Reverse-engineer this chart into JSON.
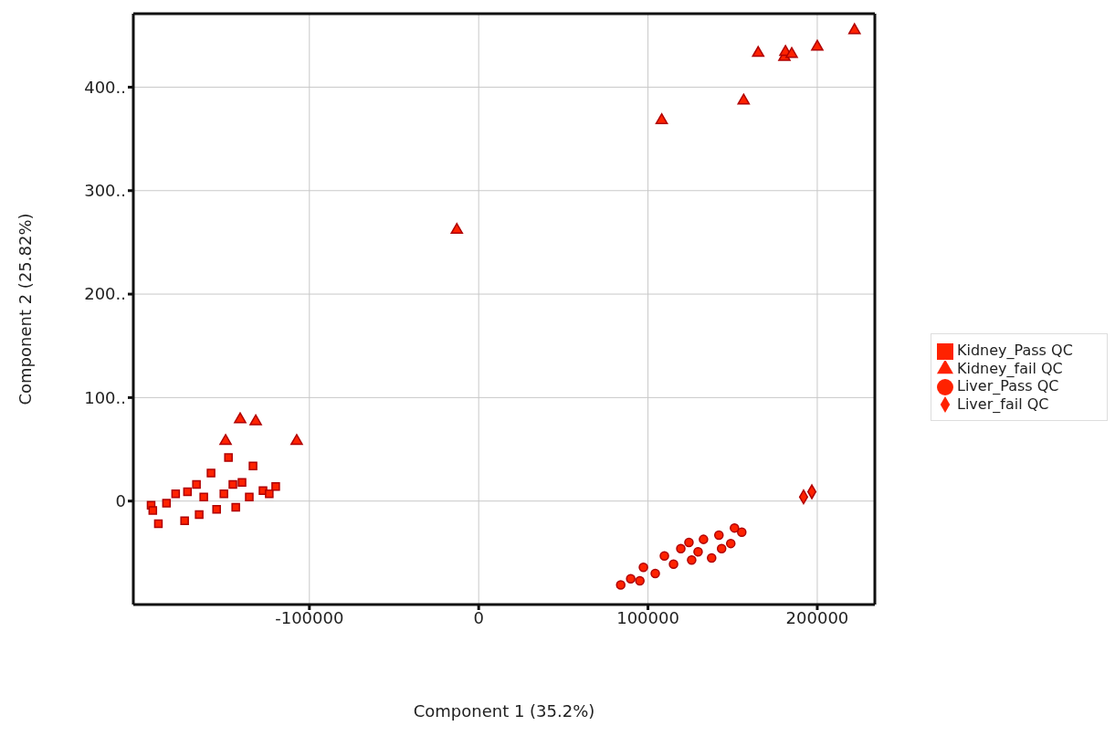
{
  "chart_data": {
    "type": "scatter",
    "xlabel": "Component 1 (35.2%)",
    "ylabel": "Component 2 (25.82%)",
    "xlim": [
      -204000,
      234000
    ],
    "ylim": [
      -100,
      471
    ],
    "xticks": [
      -100000,
      0,
      100000,
      200000
    ],
    "yticks": [
      0,
      {
        "value": 100,
        "label": "100.."
      },
      {
        "value": 200,
        "label": "200.."
      },
      {
        "value": 300,
        "label": "300.."
      },
      {
        "value": 400,
        "label": "400.."
      }
    ],
    "grid": true,
    "legend": "right",
    "series": [
      {
        "name": "Kidney_Pass QC",
        "color": "#ff2200",
        "marker": "square",
        "x": [
          -147800,
          -133300,
          -158100,
          -145200,
          -119900,
          -172000,
          -162400,
          -127400,
          -184400,
          -193500,
          -135500,
          -154800,
          -165100,
          -173700,
          -189200,
          -143500,
          -179000,
          -139800,
          -166700,
          -150500,
          -192500,
          -123700
        ],
        "values": [
          42,
          34,
          27,
          16,
          14,
          9,
          4,
          10,
          -2,
          -4,
          4,
          -8,
          -13,
          -19,
          -22,
          -6,
          7,
          18,
          16,
          7,
          -9,
          7
        ]
      },
      {
        "name": "Kidney_fail QC",
        "color": "#ff2200",
        "marker": "triangle",
        "x": [
          -149500,
          -140900,
          -131700,
          -107500,
          -12900,
          108100,
          156500,
          165100,
          180600,
          181200,
          184900,
          200000,
          222000
        ],
        "values": [
          58,
          79,
          77,
          58,
          262,
          368,
          387,
          433,
          429,
          434,
          432,
          439,
          455
        ]
      },
      {
        "name": "Liver_Pass QC",
        "color": "#ff2200",
        "marker": "circle",
        "x": [
          83900,
          89800,
          104300,
          97300,
          109700,
          119400,
          125800,
          124200,
          132800,
          137600,
          141900,
          148900,
          155400,
          151100,
          115100,
          129600,
          95200,
          143500
        ],
        "values": [
          -81,
          -75,
          -70,
          -64,
          -53,
          -46,
          -57,
          -40,
          -37,
          -55,
          -33,
          -41,
          -30,
          -26,
          -61,
          -49,
          -77,
          -46
        ]
      },
      {
        "name": "Liver_fail QC",
        "color": "#ff2200",
        "marker": "diamond",
        "x": [
          191900,
          196800
        ],
        "values": [
          4,
          9
        ]
      }
    ]
  }
}
